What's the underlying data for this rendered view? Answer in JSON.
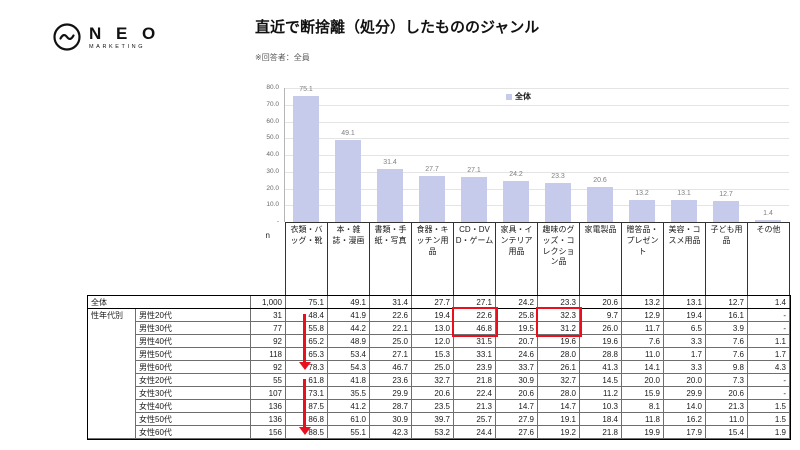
{
  "logo": {
    "name": "N E O",
    "sub": "MARKETING"
  },
  "header": {
    "title": "直近で断捨離（処分）したもののジャンル",
    "note": "※回答者：全員"
  },
  "chart_data": {
    "type": "bar",
    "title": "直近で断捨離（処分）したもののジャンル",
    "legend": [
      "全体"
    ],
    "legend_position": "right",
    "categories": [
      "衣類・バッグ・靴",
      "本・雑誌・漫画",
      "書類・手紙・写真",
      "食器・キッチン用品",
      "CD・DVD・ゲーム",
      "家具・インテリア用品",
      "趣味のグッズ・コレクション品",
      "家電製品",
      "贈答品・プレゼント",
      "美容・コスメ用品",
      "子ども用品",
      "その他"
    ],
    "values": [
      75.1,
      49.1,
      31.4,
      27.7,
      27.1,
      24.2,
      23.3,
      20.6,
      13.2,
      13.1,
      12.7,
      1.4
    ],
    "xlabel": "",
    "ylabel": "",
    "ylim": [
      0,
      80
    ],
    "ytick_labels": [
      "80.0",
      "70.0",
      "60.0",
      "50.0",
      "40.0",
      "30.0",
      "20.0",
      "10.0",
      "-"
    ],
    "grid": true,
    "bar_color": "#c6cbeb",
    "value_label_color": "#7f7f7f"
  },
  "table": {
    "n_header": "n",
    "col_headers": [
      "衣類・バッグ・靴",
      "本・雑誌・漫画",
      "書類・手紙・写真",
      "食器・キッチン用品",
      "CD・DVD・ゲーム",
      "家具・インテリア用品",
      "趣味のグッズ・コレクション品",
      "家電製品",
      "贈答品・プレゼント",
      "美容・コスメ用品",
      "子ども用品",
      "その他"
    ],
    "rows": [
      {
        "group": "",
        "label": "全体",
        "n": "1,000",
        "values": [
          "75.1",
          "49.1",
          "31.4",
          "27.7",
          "27.1",
          "24.2",
          "23.3",
          "20.6",
          "13.2",
          "13.1",
          "12.7",
          "1.4"
        ]
      },
      {
        "group": "性年代別",
        "label": "男性20代",
        "n": "31",
        "values": [
          "48.4",
          "41.9",
          "22.6",
          "19.4",
          "22.6",
          "25.8",
          "32.3",
          "9.7",
          "12.9",
          "19.4",
          "16.1",
          "-"
        ]
      },
      {
        "group": "",
        "label": "男性30代",
        "n": "77",
        "values": [
          "55.8",
          "44.2",
          "22.1",
          "13.0",
          "46.8",
          "19.5",
          "31.2",
          "26.0",
          "11.7",
          "6.5",
          "3.9",
          "-"
        ]
      },
      {
        "group": "",
        "label": "男性40代",
        "n": "92",
        "values": [
          "65.2",
          "48.9",
          "25.0",
          "12.0",
          "31.5",
          "20.7",
          "19.6",
          "19.6",
          "7.6",
          "3.3",
          "7.6",
          "1.1"
        ]
      },
      {
        "group": "",
        "label": "男性50代",
        "n": "118",
        "values": [
          "65.3",
          "53.4",
          "27.1",
          "15.3",
          "33.1",
          "24.6",
          "28.0",
          "28.8",
          "11.0",
          "1.7",
          "7.6",
          "1.7"
        ]
      },
      {
        "group": "",
        "label": "男性60代",
        "n": "92",
        "values": [
          "78.3",
          "54.3",
          "46.7",
          "25.0",
          "23.9",
          "33.7",
          "26.1",
          "41.3",
          "14.1",
          "3.3",
          "9.8",
          "4.3"
        ]
      },
      {
        "group": "",
        "label": "女性20代",
        "n": "55",
        "values": [
          "61.8",
          "41.8",
          "23.6",
          "32.7",
          "21.8",
          "30.9",
          "32.7",
          "14.5",
          "20.0",
          "20.0",
          "7.3",
          "-"
        ]
      },
      {
        "group": "",
        "label": "女性30代",
        "n": "107",
        "values": [
          "73.1",
          "35.5",
          "29.9",
          "20.6",
          "22.4",
          "20.6",
          "28.0",
          "11.2",
          "15.9",
          "29.9",
          "20.6",
          "-"
        ]
      },
      {
        "group": "",
        "label": "女性40代",
        "n": "136",
        "values": [
          "87.5",
          "41.2",
          "28.7",
          "23.5",
          "21.3",
          "14.7",
          "14.7",
          "10.3",
          "8.1",
          "14.0",
          "21.3",
          "1.5"
        ]
      },
      {
        "group": "",
        "label": "女性50代",
        "n": "136",
        "values": [
          "86.8",
          "61.0",
          "30.9",
          "39.7",
          "25.7",
          "27.9",
          "19.1",
          "18.4",
          "11.8",
          "16.2",
          "11.0",
          "1.5"
        ]
      },
      {
        "group": "",
        "label": "女性60代",
        "n": "156",
        "values": [
          "88.5",
          "55.1",
          "42.3",
          "53.2",
          "24.4",
          "27.6",
          "19.2",
          "21.8",
          "19.9",
          "17.9",
          "15.4",
          "1.9"
        ]
      }
    ]
  },
  "annotations": {
    "color": "#e8101d",
    "red_boxes": [
      {
        "rows": [
          1,
          2
        ],
        "col": 4
      },
      {
        "rows": [
          1,
          2
        ],
        "col": 6
      }
    ],
    "arrows": [
      {
        "from_row": 1,
        "to_row": 5,
        "col": 0
      },
      {
        "from_row": 6,
        "to_row": 10,
        "col": 0
      }
    ]
  }
}
